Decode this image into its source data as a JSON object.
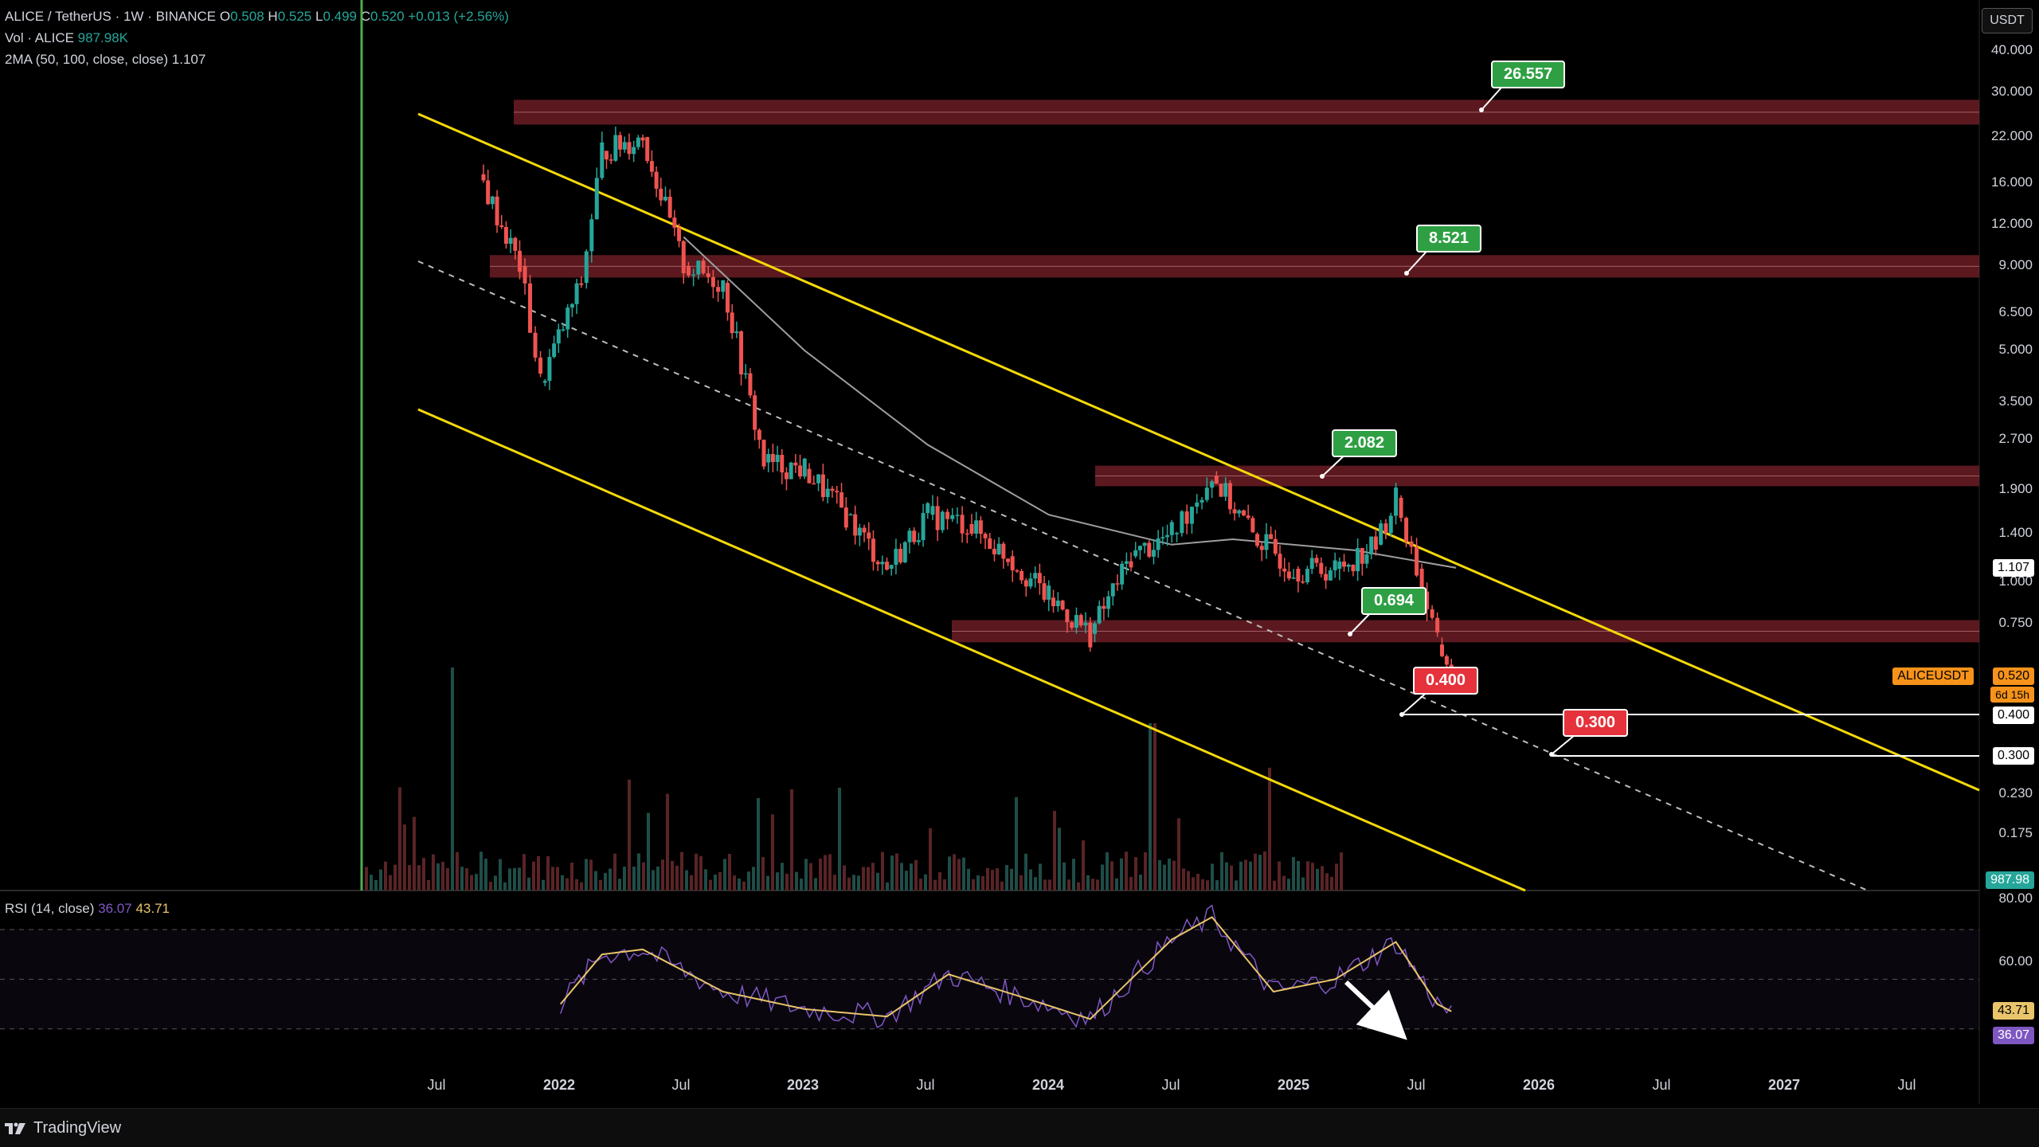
{
  "legend": {
    "symbol": "ALICE / TetherUS · 1W · BINANCE",
    "o_label": "O",
    "o_value": "0.508",
    "h_label": "H",
    "h_value": "0.525",
    "l_label": "L",
    "l_value": "0.499",
    "c_label": "C",
    "c_value": "0.520",
    "change": "+0.013 (+2.56%)",
    "vol_label": "Vol · ALICE",
    "vol_value": "987.98K",
    "ma_label": "2MA (50, 100, close, close)",
    "ma_value": "1.107"
  },
  "currency_button": "USDT",
  "price_axis": [
    "40.000",
    "30.000",
    "22.000",
    "16.000",
    "12.000",
    "9.000",
    "6.500",
    "5.000",
    "3.500",
    "2.700",
    "1.900",
    "1.400",
    "1.000",
    "0.750",
    "0.230",
    "0.175"
  ],
  "price_badges": {
    "ma": "1.107",
    "symbol_tag": "ALICEUSDT",
    "last": "0.520",
    "countdown": "6d 15h",
    "s1": "0.400",
    "s2": "0.300",
    "volume": "987.98"
  },
  "annotations": {
    "t1": "26.557",
    "t2": "8.521",
    "t3": "2.082",
    "t4": "0.694",
    "s1": "0.400",
    "s2": "0.300"
  },
  "rsi": {
    "label": "RSI (14, close)",
    "value": "36.07",
    "ma_value": "43.71",
    "axis": [
      "80.00",
      "60.00"
    ],
    "badge_ma": "43.71",
    "badge_rsi": "36.07"
  },
  "time_axis": [
    {
      "label": "Jul",
      "bold": false
    },
    {
      "label": "2022",
      "bold": true
    },
    {
      "label": "Jul",
      "bold": false
    },
    {
      "label": "2023",
      "bold": true
    },
    {
      "label": "Jul",
      "bold": false
    },
    {
      "label": "2024",
      "bold": true
    },
    {
      "label": "Jul",
      "bold": false
    },
    {
      "label": "2025",
      "bold": true
    },
    {
      "label": "Jul",
      "bold": false
    },
    {
      "label": "2026",
      "bold": true
    },
    {
      "label": "Jul",
      "bold": false
    },
    {
      "label": "2027",
      "bold": true
    },
    {
      "label": "Jul",
      "bold": false
    }
  ],
  "footer": {
    "brand": "TradingView"
  },
  "colors": {
    "up": "#26a69a",
    "down": "#ef5350",
    "channel": "#f5d90a",
    "zone": "#6b1d24",
    "ma": "#9e9e9e",
    "rsi": "#7e57c2",
    "rsi_ma": "#e9c46a",
    "tag_green": "#2ea043",
    "tag_red": "#e5323b",
    "last_price": "#f7931a"
  },
  "chart_data": {
    "type": "candlestick",
    "title": "ALICE / TetherUS · 1W · BINANCE",
    "scale": "log",
    "x_range": [
      "2021-03",
      "2027-09"
    ],
    "y_range": [
      0.12,
      40
    ],
    "last": {
      "open": 0.508,
      "high": 0.525,
      "low": 0.499,
      "close": 0.52
    },
    "key_levels": [
      26.557,
      8.521,
      2.082,
      0.694,
      0.4,
      0.3
    ],
    "resistance_zones": [
      [
        24.0,
        28.5
      ],
      [
        8.3,
        9.7
      ],
      [
        1.95,
        2.25
      ],
      [
        0.66,
        0.77
      ]
    ],
    "support_lines": [
      0.4,
      0.3
    ],
    "price_series_approx": [
      {
        "date": "2021-03",
        "close": 17
      },
      {
        "date": "2021-05",
        "close": 9
      },
      {
        "date": "2021-06",
        "close": 4
      },
      {
        "date": "2021-08",
        "close": 8
      },
      {
        "date": "2021-09",
        "close": 20
      },
      {
        "date": "2021-11",
        "close": 22
      },
      {
        "date": "2022-01",
        "close": 9
      },
      {
        "date": "2022-03",
        "close": 8
      },
      {
        "date": "2022-05",
        "close": 2.3
      },
      {
        "date": "2022-07",
        "close": 2.2
      },
      {
        "date": "2022-09",
        "close": 1.6
      },
      {
        "date": "2022-11",
        "close": 1.1
      },
      {
        "date": "2023-01",
        "close": 1.6
      },
      {
        "date": "2023-03",
        "close": 1.5
      },
      {
        "date": "2023-05",
        "close": 1.2
      },
      {
        "date": "2023-07",
        "close": 0.9
      },
      {
        "date": "2023-09",
        "close": 0.7
      },
      {
        "date": "2023-11",
        "close": 1.2
      },
      {
        "date": "2024-01",
        "close": 1.4
      },
      {
        "date": "2024-03",
        "close": 2.1
      },
      {
        "date": "2024-05",
        "close": 1.4
      },
      {
        "date": "2024-07",
        "close": 1.1
      },
      {
        "date": "2024-09",
        "close": 1.1
      },
      {
        "date": "2024-11",
        "close": 1.3
      },
      {
        "date": "2024-12",
        "close": 1.8
      },
      {
        "date": "2025-01",
        "close": 1.1
      },
      {
        "date": "2025-02",
        "close": 0.65
      },
      {
        "date": "2025-03",
        "close": 0.52
      }
    ],
    "ma_series_approx": [
      {
        "date": "2022-01",
        "value": 11
      },
      {
        "date": "2022-07",
        "value": 5
      },
      {
        "date": "2023-01",
        "value": 2.6
      },
      {
        "date": "2023-07",
        "value": 1.6
      },
      {
        "date": "2024-01",
        "value": 1.3
      },
      {
        "date": "2024-04",
        "value": 1.35
      },
      {
        "date": "2024-10",
        "value": 1.25
      },
      {
        "date": "2025-03",
        "value": 1.107
      }
    ],
    "rsi_series_approx": [
      {
        "date": "2021-07",
        "value": 40
      },
      {
        "date": "2021-09",
        "value": 60
      },
      {
        "date": "2021-11",
        "value": 62
      },
      {
        "date": "2022-03",
        "value": 45
      },
      {
        "date": "2022-07",
        "value": 38
      },
      {
        "date": "2022-11",
        "value": 35
      },
      {
        "date": "2023-02",
        "value": 52
      },
      {
        "date": "2023-06",
        "value": 42
      },
      {
        "date": "2023-09",
        "value": 34
      },
      {
        "date": "2024-01",
        "value": 66
      },
      {
        "date": "2024-03",
        "value": 75
      },
      {
        "date": "2024-06",
        "value": 45
      },
      {
        "date": "2024-09",
        "value": 50
      },
      {
        "date": "2024-12",
        "value": 65
      },
      {
        "date": "2025-02",
        "value": 40
      },
      {
        "date": "2025-03",
        "value": 36.07
      }
    ],
    "rsi_range": [
      20,
      80
    ]
  }
}
